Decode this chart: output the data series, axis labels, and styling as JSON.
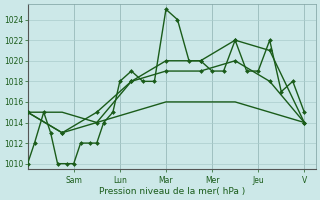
{
  "bg_color": "#cce8e8",
  "grid_color": "#aacccc",
  "line_color": "#1a5c1a",
  "xlabel": "Pression niveau de la mer( hPa )",
  "ylim": [
    1009.5,
    1025.5
  ],
  "yticks": [
    1010,
    1012,
    1014,
    1016,
    1018,
    1020,
    1022,
    1024
  ],
  "day_labels": [
    "Sam",
    "Lun",
    "Mar",
    "Mer",
    "Jeu",
    "V"
  ],
  "day_positions": [
    2,
    4,
    6,
    8,
    10,
    12
  ],
  "xlim": [
    0,
    12.5
  ],
  "series": [
    {
      "x": [
        0.0,
        0.3,
        0.7,
        1.0,
        1.3,
        1.7,
        2.0,
        2.3,
        2.7,
        3.0,
        3.3,
        3.7,
        4.0,
        4.5,
        5.0,
        5.5,
        6.0,
        6.5,
        7.0,
        7.5,
        8.0,
        8.5,
        9.0,
        9.5,
        10.0,
        10.5,
        11.0,
        11.5,
        12.0
      ],
      "y": [
        1010,
        1012,
        1015,
        1013,
        1010,
        1010,
        1010,
        1012,
        1012,
        1012,
        1014,
        1015,
        1018,
        1019,
        1018,
        1018,
        1025,
        1024,
        1020,
        1020,
        1019,
        1019,
        1022,
        1019,
        1019,
        1022,
        1017,
        1018,
        1015
      ],
      "marker": "D",
      "lw": 1.0,
      "ms": 2.0
    },
    {
      "x": [
        0.0,
        1.5,
        3.0,
        4.5,
        6.0,
        7.5,
        9.0,
        10.5,
        12.0
      ],
      "y": [
        1015,
        1015,
        1014,
        1015,
        1016,
        1016,
        1016,
        1015,
        1014
      ],
      "marker": null,
      "lw": 1.0,
      "ms": 0
    },
    {
      "x": [
        0.0,
        1.5,
        3.0,
        4.5,
        6.0,
        7.5,
        9.0,
        10.5,
        12.0
      ],
      "y": [
        1015,
        1013,
        1014,
        1018,
        1019,
        1019,
        1020,
        1018,
        1014
      ],
      "marker": "D",
      "lw": 1.0,
      "ms": 2.0
    },
    {
      "x": [
        0.0,
        1.5,
        3.0,
        4.5,
        6.0,
        7.5,
        9.0,
        10.5,
        12.0
      ],
      "y": [
        1015,
        1013,
        1015,
        1018,
        1020,
        1020,
        1022,
        1021,
        1014
      ],
      "marker": "D",
      "lw": 1.0,
      "ms": 2.0
    }
  ]
}
